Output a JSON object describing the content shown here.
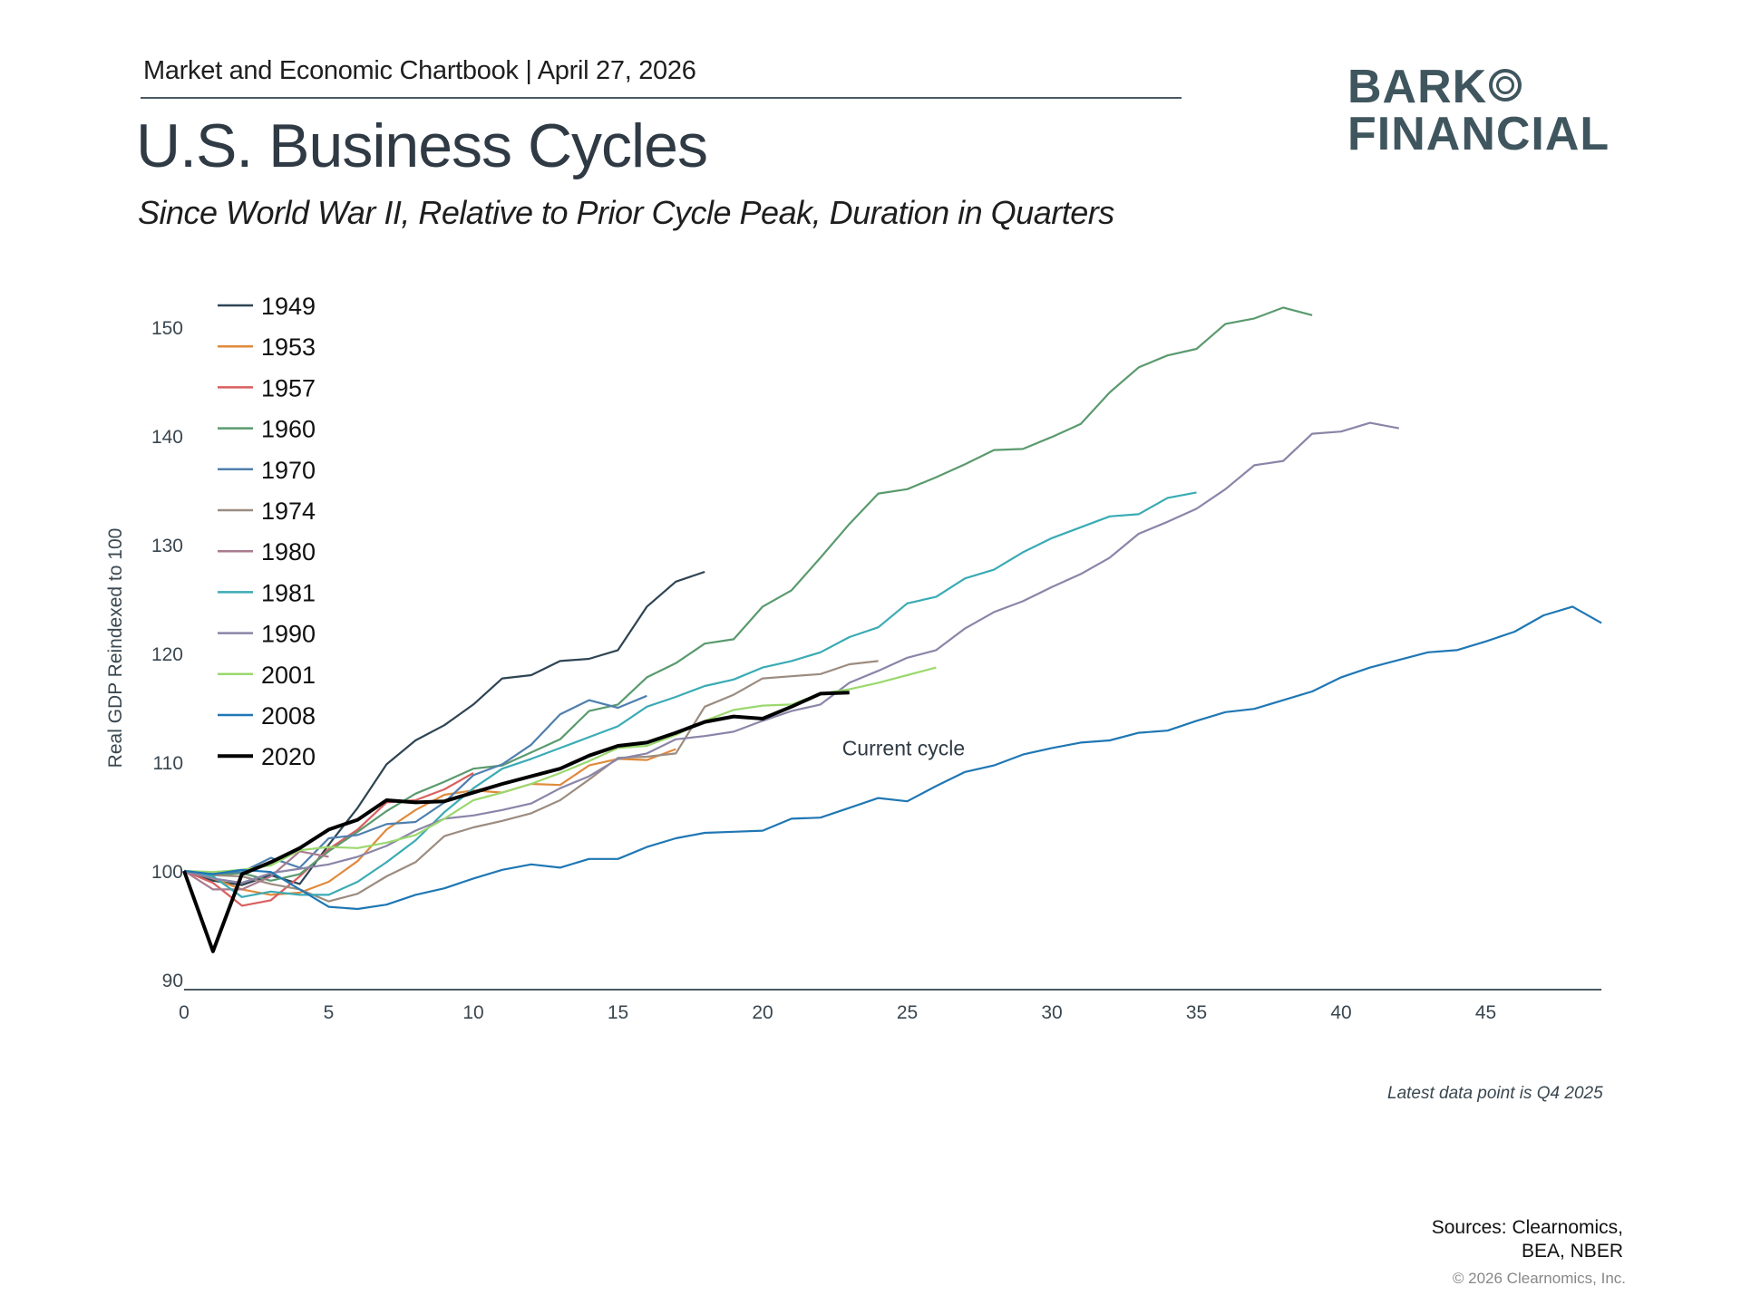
{
  "header": {
    "chartbook": "Market and Economic Chartbook | April 27, 2026",
    "title": "U.S. Business Cycles",
    "subtitle": "Since World War II, Relative to Prior Cycle Peak, Duration in Quarters"
  },
  "logo": {
    "line1": "BARK",
    "line2": "FINANCIAL",
    "color": "#40565f"
  },
  "footer": {
    "note": "Latest data point is Q4 2025",
    "sources_line1": "Sources: Clearnomics,",
    "sources_line2": "BEA, NBER",
    "copyright": "© 2026 Clearnomics, Inc."
  },
  "chart_data": {
    "type": "line",
    "title": "U.S. Business Cycles",
    "xlabel": "",
    "ylabel": "Real GDP Reindexed to 100",
    "xlim": [
      0,
      49
    ],
    "ylim": [
      89,
      153
    ],
    "xticks": [
      0,
      5,
      10,
      15,
      20,
      25,
      30,
      35,
      40,
      45
    ],
    "yticks": [
      90,
      100,
      110,
      120,
      130,
      140,
      150
    ],
    "grid": false,
    "legend": "top-left",
    "annotations": [
      {
        "text": "Current cycle",
        "x": 23,
        "y": 111.3
      }
    ],
    "series": [
      {
        "name": "1949",
        "color": "#2e4453",
        "values": [
          100,
          99.1,
          98.7,
          99.6,
          98.8,
          102.4,
          105.8,
          109.8,
          112.0,
          113.4,
          115.3,
          117.7,
          118.0,
          119.3,
          119.5,
          120.3,
          124.3,
          126.6,
          127.5
        ]
      },
      {
        "name": "1953",
        "color": "#e08a3c",
        "values": [
          100,
          99.3,
          98.3,
          97.8,
          98.0,
          99.0,
          100.9,
          103.8,
          105.6,
          107.0,
          107.4,
          107.2,
          108.0,
          107.9,
          109.7,
          110.3,
          110.2,
          111.2
        ]
      },
      {
        "name": "1957",
        "color": "#d95f5f",
        "values": [
          100,
          98.9,
          96.8,
          97.3,
          99.5,
          102.0,
          103.8,
          106.3,
          106.5,
          107.5,
          109.0
        ]
      },
      {
        "name": "1960",
        "color": "#5a9a6e",
        "values": [
          100,
          99.6,
          99.8,
          99.1,
          99.7,
          101.8,
          103.6,
          105.5,
          107.1,
          108.2,
          109.4,
          109.7,
          110.9,
          112.1,
          114.7,
          115.3,
          117.8,
          119.1,
          120.9,
          121.3,
          124.3,
          125.8,
          128.8,
          131.9,
          134.7,
          135.1,
          136.2,
          137.4,
          138.7,
          138.8,
          139.9,
          141.1,
          144.0,
          146.3,
          147.4,
          148.0,
          150.3,
          150.8,
          151.8,
          151.1
        ]
      },
      {
        "name": "1970",
        "color": "#4f7fae",
        "values": [
          100,
          99.8,
          99.9,
          101.2,
          100.3,
          103.0,
          103.3,
          104.3,
          104.5,
          106.3,
          108.8,
          109.8,
          111.6,
          114.4,
          115.7,
          115.0,
          116.1
        ]
      },
      {
        "name": "1974",
        "color": "#9c8c80",
        "values": [
          100,
          99.6,
          99.5,
          98.8,
          98.3,
          97.2,
          97.9,
          99.5,
          100.8,
          103.2,
          104.0,
          104.6,
          105.3,
          106.5,
          108.4,
          110.4,
          110.5,
          110.8,
          115.1,
          116.2,
          117.7,
          117.9,
          118.1,
          119.0,
          119.3
        ]
      },
      {
        "name": "1980",
        "color": "#a97b8e",
        "values": [
          100,
          98.3,
          98.3,
          99.5,
          101.8,
          101.3
        ]
      },
      {
        "name": "1981",
        "color": "#3aabb4",
        "values": [
          100,
          99.5,
          97.6,
          98.1,
          97.8,
          97.8,
          99.0,
          100.8,
          102.8,
          105.4,
          107.6,
          109.4,
          110.3,
          111.3,
          112.3,
          113.3,
          115.1,
          116.0,
          117.0,
          117.6,
          118.7,
          119.3,
          120.1,
          121.5,
          122.4,
          124.6,
          125.2,
          126.9,
          127.7,
          129.3,
          130.6,
          131.6,
          132.6,
          132.8,
          134.3,
          134.8
        ]
      },
      {
        "name": "1990",
        "color": "#8a85a8",
        "values": [
          100,
          99.3,
          98.9,
          99.8,
          100.2,
          100.6,
          101.3,
          102.3,
          103.7,
          104.8,
          105.1,
          105.6,
          106.2,
          107.6,
          108.7,
          110.3,
          110.8,
          112.1,
          112.4,
          112.8,
          113.8,
          114.7,
          115.3,
          117.3,
          118.4,
          119.6,
          120.3,
          122.3,
          123.8,
          124.8,
          126.1,
          127.3,
          128.8,
          131.0,
          132.1,
          133.3,
          135.1,
          137.3,
          137.7,
          140.2,
          140.4,
          141.2,
          140.7
        ]
      },
      {
        "name": "2001",
        "color": "#9bd86e",
        "values": [
          100,
          99.9,
          100.1,
          100.5,
          101.9,
          102.2,
          102.1,
          102.6,
          103.3,
          104.8,
          106.5,
          107.2,
          108.0,
          109.0,
          110.1,
          111.3,
          111.5,
          112.5,
          113.8,
          114.8,
          115.2,
          115.3,
          116.3,
          116.7,
          117.3,
          118.0,
          118.7
        ]
      },
      {
        "name": "2008",
        "color": "#1f77b4",
        "values": [
          100,
          99.7,
          100.1,
          99.9,
          98.3,
          96.7,
          96.5,
          96.9,
          97.8,
          98.4,
          99.3,
          100.1,
          100.6,
          100.3,
          101.1,
          101.1,
          102.2,
          103.0,
          103.5,
          103.6,
          103.7,
          104.8,
          104.9,
          105.8,
          106.7,
          106.4,
          107.8,
          109.1,
          109.7,
          110.7,
          111.3,
          111.8,
          112.0,
          112.7,
          112.9,
          113.8,
          114.6,
          114.9,
          115.7,
          116.5,
          117.8,
          118.7,
          119.4,
          120.1,
          120.3,
          121.1,
          122.0,
          123.5,
          124.3,
          122.8
        ]
      },
      {
        "name": "2020",
        "color": "#000000",
        "bold": true,
        "values": [
          100,
          92.6,
          99.7,
          100.8,
          102.1,
          103.8,
          104.7,
          106.5,
          106.3,
          106.4,
          107.2,
          108.0,
          108.7,
          109.4,
          110.6,
          111.5,
          111.8,
          112.7,
          113.7,
          114.2,
          114.0,
          115.1,
          116.3,
          116.4
        ]
      }
    ]
  }
}
